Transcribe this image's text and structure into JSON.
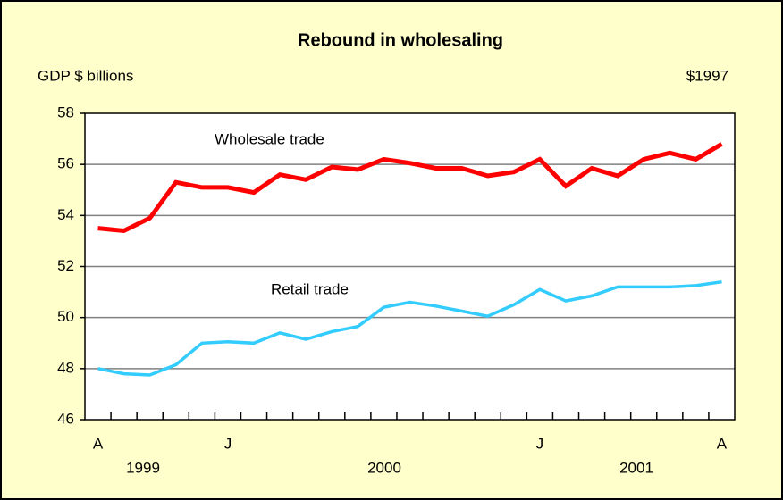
{
  "chart_data": {
    "type": "line",
    "title": "Rebound in wholesaling",
    "y_axis_label": "GDP $ billions",
    "unit_note": "$1997",
    "categories": [
      "A",
      null,
      null,
      null,
      null,
      "J",
      null,
      null,
      null,
      null,
      null,
      null,
      null,
      null,
      null,
      null,
      null,
      "J",
      null,
      null,
      null,
      null,
      null,
      null,
      "A"
    ],
    "year_labels": [
      "1999",
      "2000",
      "2001"
    ],
    "series": [
      {
        "name": "Wholesale trade",
        "color": "#ff0000",
        "values": [
          53.5,
          53.4,
          53.9,
          55.3,
          55.1,
          55.1,
          54.9,
          55.6,
          55.4,
          55.9,
          55.8,
          56.2,
          56.05,
          55.85,
          55.85,
          55.55,
          55.7,
          56.2,
          55.15,
          55.85,
          55.55,
          56.2,
          56.45,
          56.2,
          56.8
        ]
      },
      {
        "name": "Retail trade",
        "color": "#33ccff",
        "values": [
          48.0,
          47.8,
          47.75,
          48.15,
          49.0,
          49.05,
          49.0,
          49.4,
          49.15,
          49.45,
          49.65,
          50.4,
          50.6,
          50.45,
          50.25,
          50.05,
          50.5,
          51.1,
          50.65,
          50.85,
          51.2,
          51.2,
          51.2,
          51.25,
          51.4
        ]
      }
    ],
    "ylim": [
      46,
      58
    ],
    "yticks": [
      46,
      48,
      50,
      52,
      54,
      56,
      58
    ],
    "grid": true
  }
}
